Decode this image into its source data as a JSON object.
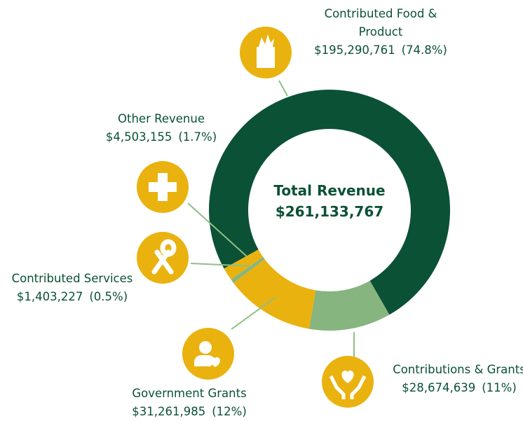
{
  "chart_data": {
    "type": "donut",
    "center_label": "Total Revenue",
    "total": 261133767,
    "total_label": "$261,133,767",
    "categories": [
      "Contributed Food & Product",
      "Contributions & Grants",
      "Government Grants",
      "Contributed Services",
      "Other Revenue"
    ],
    "values": [
      195290761,
      28674639,
      31261985,
      1403227,
      4503155
    ],
    "value_labels": [
      "$195,290,761",
      "$28,674,639",
      "$31,261,985",
      "$1,403,227",
      "$4,503,155"
    ],
    "percent_labels": [
      "(74.8%)",
      "(11%)",
      "(12%)",
      "(0.5%)",
      "(1.7%)"
    ],
    "colors": [
      "#0b5135",
      "#86b57f",
      "#eab20f",
      "#86b57f",
      "#eab20f"
    ]
  }
}
